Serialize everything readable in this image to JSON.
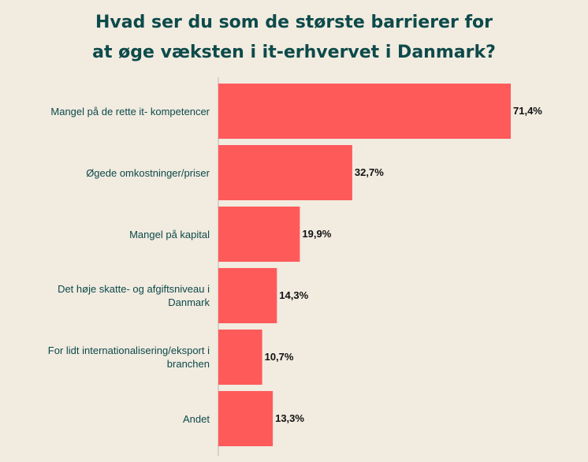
{
  "chart_data": {
    "type": "bar",
    "orientation": "horizontal",
    "title_lines": [
      "Hvad ser du som de største barrierer for",
      "at øge væksten i it-erhvervet i Danmark?"
    ],
    "categories": [
      "Mangel på de rette it- kompetencer",
      "Øgede omkostninger/priser",
      "Mangel på kapital",
      "Det høje skatte- og afgiftsniveau i Danmark",
      "For lidt internationalisering/eksport i branchen",
      "Andet"
    ],
    "values": [
      71.4,
      32.7,
      19.9,
      14.3,
      10.7,
      13.3
    ],
    "value_labels": [
      "71,4%",
      "32,7%",
      "19,9%",
      "14,3%",
      "10,7%",
      "13,3%"
    ],
    "xlim": [
      0,
      100
    ],
    "grid": false,
    "colors": {
      "bar": "#ff5a5a",
      "axis": "#b9b9b9",
      "title": "#0d4a4a",
      "background": "#f1ebe0"
    }
  }
}
